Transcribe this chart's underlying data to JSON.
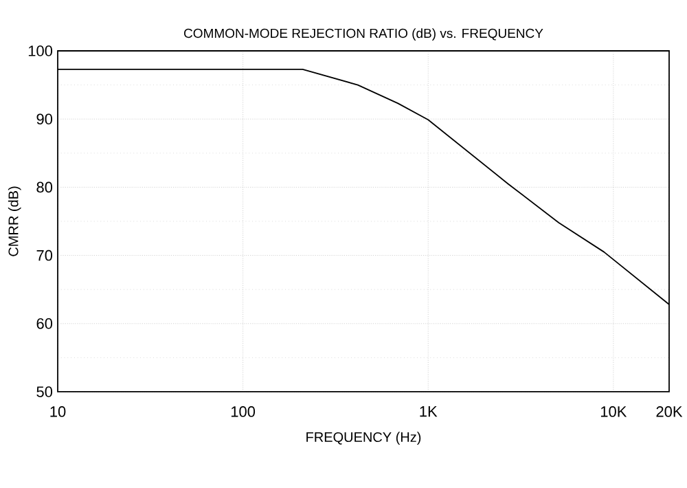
{
  "chart_data": {
    "type": "line",
    "title": "COMMON-MODE REJECTION RATIO (dB) vs. FREQUENCY",
    "xlabel": "FREQUENCY (Hz)",
    "ylabel": "CMRR (dB)",
    "x": [
      10,
      210,
      417,
      687,
      1000,
      2700,
      5070,
      8900,
      20000
    ],
    "series": [
      {
        "color": "#000000",
        "values": [
          97.3,
          97.3,
          95,
          92.3,
          89.9,
          80.5,
          74.8,
          70.5,
          62.8
        ]
      }
    ],
    "log": "x",
    "xlim": [
      10,
      20000
    ],
    "ylim": [
      50,
      100
    ],
    "xticks": [
      10,
      100,
      {
        "value": 1000,
        "label": "1K"
      },
      {
        "value": 10000,
        "label": "10K"
      },
      {
        "value": 20000,
        "label": "20K"
      }
    ],
    "yticks": [
      50,
      60,
      70,
      80,
      90,
      100
    ],
    "grid": true,
    "marker": "none",
    "line_style": "solid"
  }
}
